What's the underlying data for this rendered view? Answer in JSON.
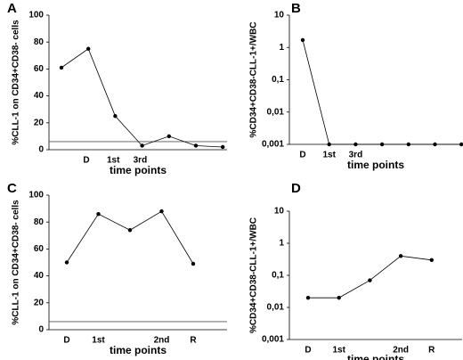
{
  "chart_data": [
    {
      "type": "line",
      "panel": "A",
      "ylabel": "%CLL-1 on CD34+CD38- cells",
      "xlabel": "time points",
      "categories": [
        "D",
        "1st",
        "3rd",
        null,
        null,
        null,
        null
      ],
      "values": [
        61,
        75,
        25,
        3,
        10,
        3,
        2
      ],
      "color": "#000000",
      "ylim": [
        0,
        100
      ],
      "yticks": [
        0,
        20,
        40,
        60,
        80,
        100
      ],
      "hline": 6
    },
    {
      "type": "line",
      "panel": "B",
      "ylabel": "%CD34+CD38-CLL-1+/WBC",
      "xlabel": "time points",
      "categories": [
        "D",
        "1st",
        "3rd",
        null,
        null,
        null,
        null
      ],
      "values": [
        1.7,
        0.001,
        0.001,
        0.001,
        0.001,
        0.001,
        0.001
      ],
      "color": "#000000",
      "log": true,
      "ylim": [
        0.001,
        10
      ],
      "yticks": [
        {
          "value": 0.001,
          "label": "0,001"
        },
        {
          "value": 0.01,
          "label": "0,01"
        },
        {
          "value": 0.1,
          "label": "0,1"
        },
        1,
        10
      ]
    },
    {
      "type": "line",
      "panel": "C",
      "ylabel": "%CLL-1 on CD34+CD38- cells",
      "xlabel": "time points",
      "categories": [
        "D",
        "1st",
        null,
        "2nd",
        "R"
      ],
      "values": [
        50,
        86,
        74,
        88,
        49
      ],
      "color": "#000000",
      "ylim": [
        0,
        100
      ],
      "yticks": [
        0,
        20,
        40,
        60,
        80,
        100
      ],
      "hline": 6
    },
    {
      "type": "line",
      "panel": "D",
      "ylabel": "%CD34+CD38-CLL-1+/WBC",
      "xlabel": "time points",
      "categories": [
        "D",
        "1st",
        null,
        "2nd",
        "R"
      ],
      "values": [
        0.02,
        0.02,
        0.07,
        0.4,
        0.3
      ],
      "color": "#000000",
      "log": true,
      "ylim": [
        0.001,
        10
      ],
      "yticks": [
        {
          "value": 0.001,
          "label": "0,001"
        },
        {
          "value": 0.01,
          "label": "0,01"
        },
        {
          "value": 0.1,
          "label": "0,1"
        },
        1,
        10
      ]
    }
  ]
}
